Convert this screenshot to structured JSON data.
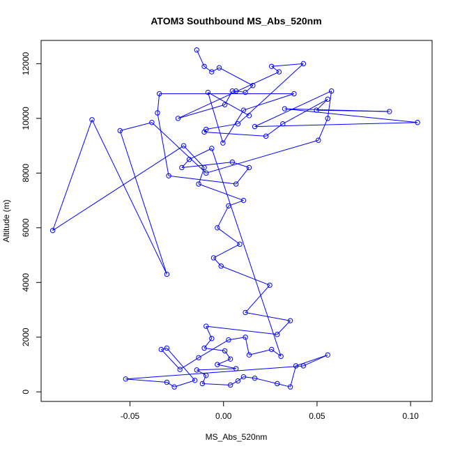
{
  "chart_data": {
    "type": "line",
    "title": "ATOM3 Southbound MS_Abs_520nm",
    "xlabel": "MS_Abs_520nm",
    "ylabel": "Altitude (m)",
    "xlim": [
      -0.0975,
      0.1115
    ],
    "ylim": [
      -350,
      12850
    ],
    "xticks": [
      -0.05,
      0.0,
      0.05,
      0.1
    ],
    "xtick_labels": [
      "-0.05",
      "0.00",
      "0.05",
      "0.10"
    ],
    "yticks": [
      0,
      2000,
      4000,
      6000,
      8000,
      10000,
      12000
    ],
    "ytick_labels": [
      "0",
      "2000",
      "4000",
      "6000",
      "8000",
      "10000",
      "12000"
    ],
    "grid": false,
    "legend": "none",
    "colors": {
      "series": "#0000ff",
      "axes": "#000000"
    },
    "series": [
      {
        "marker": "open-circle",
        "points": [
          {
            "x": -0.0143,
            "y": 12500
          },
          {
            "x": -0.0103,
            "y": 11900
          },
          {
            "x": -0.0063,
            "y": 11700
          },
          {
            "x": -0.0023,
            "y": 11850
          },
          {
            "x": 0.0157,
            "y": 11200
          },
          {
            "x": 0.0117,
            "y": 10950
          },
          {
            "x": 0.0067,
            "y": 11000
          },
          {
            "x": 0.0047,
            "y": 11000
          },
          {
            "x": 0.0007,
            "y": 10500
          },
          {
            "x": -0.0243,
            "y": 10000
          },
          {
            "x": 0.0297,
            "y": 11700
          },
          {
            "x": 0.0257,
            "y": 11900
          },
          {
            "x": 0.0427,
            "y": 12000
          },
          {
            "x": 0.0077,
            "y": 9800
          },
          {
            "x": -0.0093,
            "y": 9600
          },
          {
            "x": -0.0103,
            "y": 9500
          },
          {
            "x": 0.0227,
            "y": 9350
          },
          {
            "x": 0.0317,
            "y": 9800
          },
          {
            "x": 0.0557,
            "y": 10700
          },
          {
            "x": 0.0497,
            "y": 10300
          },
          {
            "x": 0.0887,
            "y": 10250
          },
          {
            "x": 0.0327,
            "y": 10350
          },
          {
            "x": 0.1037,
            "y": 9850
          },
          {
            "x": 0.0167,
            "y": 9700
          },
          {
            "x": 0.0577,
            "y": 11000
          },
          {
            "x": 0.0557,
            "y": 10000
          },
          {
            "x": 0.0507,
            "y": 9200
          },
          {
            "x": -0.0093,
            "y": 8000
          },
          {
            "x": -0.0383,
            "y": 9850
          },
          {
            "x": -0.0553,
            "y": 9550
          },
          {
            "x": -0.0303,
            "y": 4300
          },
          {
            "x": -0.0703,
            "y": 9950
          },
          {
            "x": -0.0913,
            "y": 5900
          },
          {
            "x": -0.0213,
            "y": 9000
          },
          {
            "x": -0.0103,
            "y": 8200
          },
          {
            "x": -0.0133,
            "y": 7600
          },
          {
            "x": 0.0107,
            "y": 7000
          },
          {
            "x": 0.0027,
            "y": 6800
          },
          {
            "x": -0.0033,
            "y": 6000
          },
          {
            "x": 0.0087,
            "y": 5400
          },
          {
            "x": -0.0053,
            "y": 4900
          },
          {
            "x": -0.0013,
            "y": 4600
          },
          {
            "x": 0.0247,
            "y": 3900
          },
          {
            "x": 0.0117,
            "y": 2900
          },
          {
            "x": 0.0357,
            "y": 2600
          },
          {
            "x": 0.0287,
            "y": 2100
          },
          {
            "x": -0.0093,
            "y": 2400
          },
          {
            "x": -0.0063,
            "y": 1950
          },
          {
            "x": -0.0103,
            "y": 1600
          },
          {
            "x": 0.0007,
            "y": 1500
          },
          {
            "x": 0.0037,
            "y": 1200
          },
          {
            "x": -0.0033,
            "y": 1000
          },
          {
            "x": 0.0067,
            "y": 850
          },
          {
            "x": -0.0143,
            "y": 800
          },
          {
            "x": -0.0093,
            "y": 600
          },
          {
            "x": -0.0113,
            "y": 300
          },
          {
            "x": 0.0037,
            "y": 250
          },
          {
            "x": 0.0077,
            "y": 400
          },
          {
            "x": 0.0107,
            "y": 550
          },
          {
            "x": 0.0167,
            "y": 500
          },
          {
            "x": 0.0287,
            "y": 300
          },
          {
            "x": 0.0357,
            "y": 180
          },
          {
            "x": 0.0387,
            "y": 950
          },
          {
            "x": 0.0557,
            "y": 1350
          },
          {
            "x": 0.0427,
            "y": 950
          },
          {
            "x": -0.0523,
            "y": 470
          },
          {
            "x": -0.0303,
            "y": 350
          },
          {
            "x": -0.0263,
            "y": 180
          },
          {
            "x": -0.0153,
            "y": 420
          },
          {
            "x": -0.0303,
            "y": 1600
          },
          {
            "x": -0.0333,
            "y": 1550
          },
          {
            "x": -0.0233,
            "y": 820
          },
          {
            "x": -0.0133,
            "y": 1250
          },
          {
            "x": 0.0027,
            "y": 1900
          },
          {
            "x": 0.0117,
            "y": 2000
          },
          {
            "x": 0.0137,
            "y": 1350
          },
          {
            "x": 0.0257,
            "y": 1550
          },
          {
            "x": 0.0307,
            "y": 1300
          },
          {
            "x": -0.0063,
            "y": 8900
          },
          {
            "x": -0.0183,
            "y": 8500
          },
          {
            "x": -0.0223,
            "y": 8200
          },
          {
            "x": 0.0047,
            "y": 8400
          },
          {
            "x": 0.0137,
            "y": 8200
          },
          {
            "x": 0.0067,
            "y": 7600
          },
          {
            "x": -0.0293,
            "y": 7900
          },
          {
            "x": -0.0353,
            "y": 10200
          },
          {
            "x": -0.0343,
            "y": 10900
          },
          {
            "x": 0.0377,
            "y": 10900
          },
          {
            "x": 0.0107,
            "y": 10300
          },
          {
            "x": -0.0003,
            "y": 9100
          },
          {
            "x": -0.0083,
            "y": 10950
          },
          {
            "x": 0.0137,
            "y": 10100
          }
        ]
      }
    ]
  }
}
